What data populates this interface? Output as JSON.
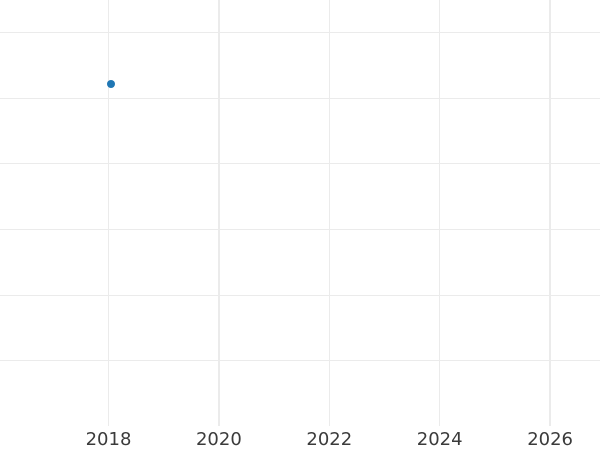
{
  "chart_data": {
    "type": "scatter",
    "title": "",
    "xlabel": "",
    "ylabel": "",
    "x_tick_labels": [
      "2018",
      "2020",
      "2022",
      "2024",
      "2026"
    ],
    "x_tick_values": [
      2018,
      2020,
      2022,
      2024,
      2026
    ],
    "y_tick_labels": [],
    "y_axis_labels_visible": false,
    "grid": true,
    "legend": null,
    "x_visible_range": [
      2016.05,
      2026.9
    ],
    "series": [
      {
        "name": "series-1",
        "marker": "circle",
        "color": "#1f77b4",
        "marker_diameter_px": 8,
        "points": [
          {
            "x": 2018.04,
            "y": null,
            "y_frac_from_plot_top": 0.198
          }
        ]
      }
    ]
  },
  "colors": {
    "background": "#ffffff",
    "gridline": "#ebebeb",
    "tick_label": "#3b3b3b"
  }
}
